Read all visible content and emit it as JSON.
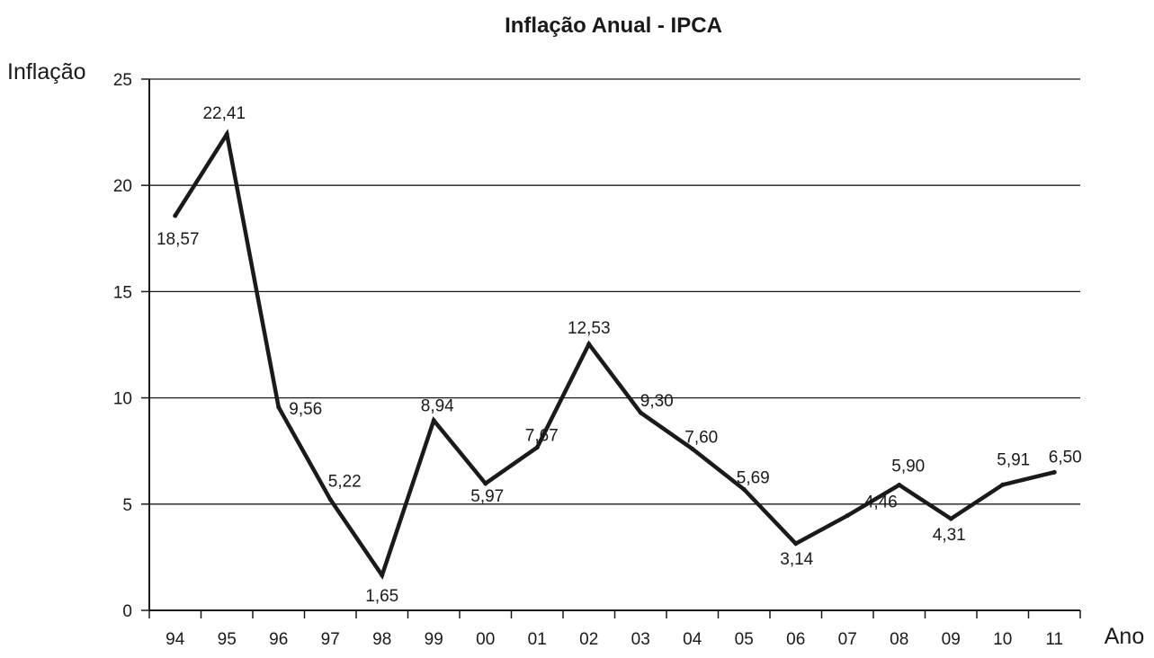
{
  "chart_data": {
    "type": "line",
    "title": "Inflação Anual - IPCA",
    "xlabel": "Ano",
    "ylabel": "Inflação",
    "categories": [
      "94",
      "95",
      "96",
      "97",
      "98",
      "99",
      "00",
      "01",
      "02",
      "03",
      "04",
      "05",
      "06",
      "07",
      "08",
      "09",
      "10",
      "11"
    ],
    "series": [
      {
        "values": [
          18.57,
          22.41,
          9.56,
          5.22,
          1.65,
          8.94,
          5.97,
          7.67,
          12.53,
          9.3,
          7.6,
          5.69,
          3.14,
          4.46,
          5.9,
          4.31,
          5.91,
          6.5
        ],
        "labels": [
          "18,57",
          "22,41",
          "9,56",
          "5,22",
          "1,65",
          "8,94",
          "5,97",
          "7,67",
          "12,53",
          "9,30",
          "7,60",
          "5,69",
          "3,14",
          "4,46",
          "5,90",
          "4,31",
          "5,91",
          "6,50"
        ]
      }
    ],
    "ylim": [
      0,
      25
    ],
    "yticks": [
      "0",
      "5",
      "10",
      "15",
      "20",
      "25"
    ],
    "grid": true,
    "colors": {
      "line": "#1a1a1a",
      "grid": "#1a1a1a",
      "text": "#1a1a1a"
    }
  }
}
